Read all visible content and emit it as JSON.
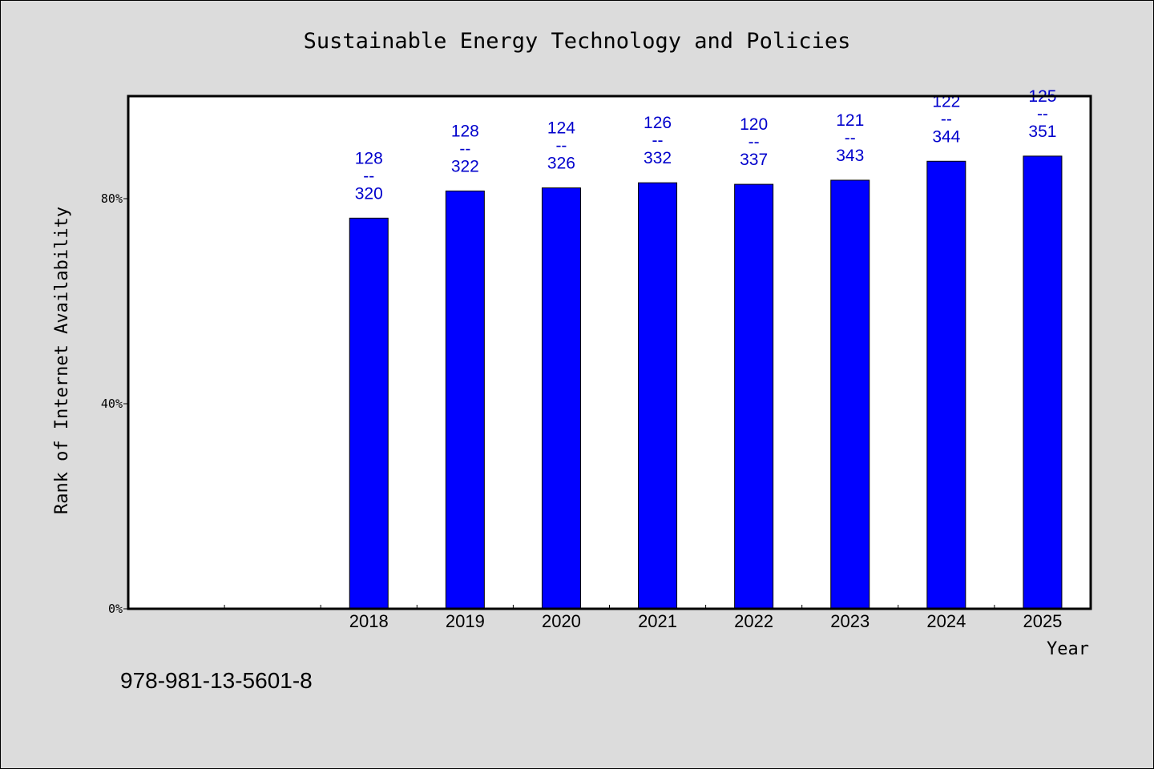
{
  "chart_data": {
    "type": "bar",
    "title": "Sustainable Energy Technology and Policies",
    "xlabel": "Year",
    "ylabel": "Rank of Internet Availability",
    "categories": [
      "",
      "",
      "2018",
      "2019",
      "2020",
      "2021",
      "2022",
      "2023",
      "2024",
      "2025"
    ],
    "values": [
      null,
      null,
      76.2,
      81.5,
      82.1,
      83.1,
      82.8,
      83.6,
      87.3,
      88.3
    ],
    "data_labels": [
      null,
      null,
      [
        "128",
        "--",
        "320"
      ],
      [
        "128",
        "--",
        "322"
      ],
      [
        "124",
        "--",
        "326"
      ],
      [
        "126",
        "--",
        "332"
      ],
      [
        "120",
        "--",
        "337"
      ],
      [
        "121",
        "--",
        "343"
      ],
      [
        "122",
        "--",
        "344"
      ],
      [
        "125",
        "--",
        "351"
      ]
    ],
    "ylim": [
      0,
      100
    ],
    "yticks": [
      0,
      40,
      80
    ],
    "ytick_labels": [
      "0%",
      "40%",
      "80%"
    ],
    "grid": false,
    "legend": "none",
    "bar_color": "#0000ff",
    "label_color": "#0000cc",
    "background": "#dcdcdc",
    "plot_background": "#ffffff"
  },
  "footer": {
    "id_text": "978-981-13-5601-8"
  }
}
